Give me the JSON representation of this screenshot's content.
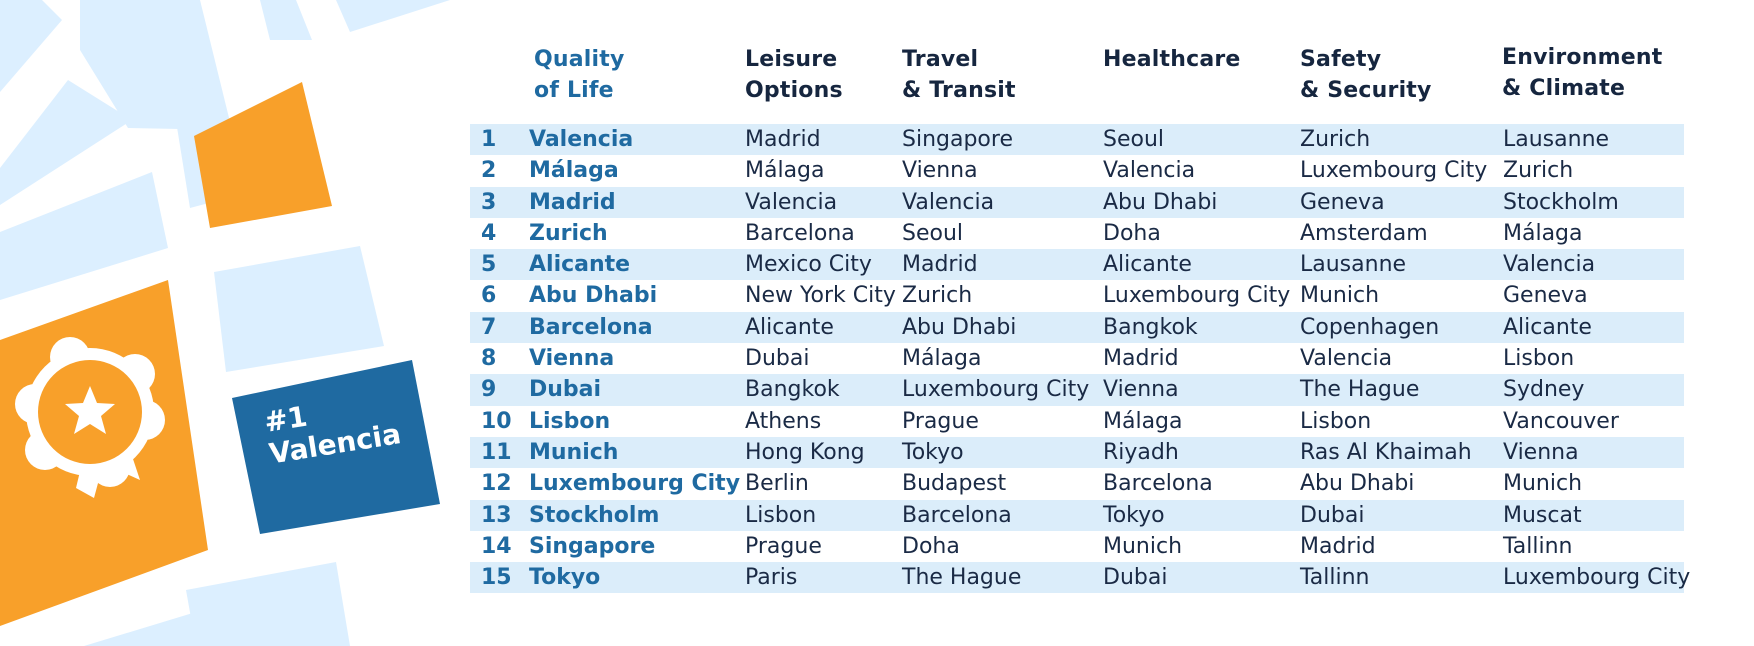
{
  "badge": {
    "line1": "#1",
    "line2": "Valencia"
  },
  "headers": {
    "quality": "Quality\nof Life",
    "leisure": "Leisure\nOptions",
    "travel": "Travel\n& Transit",
    "healthcare": "Healthcare",
    "safety": "Safety\n& Security",
    "environment": "Environment\n& Climate"
  },
  "rows": [
    {
      "rank": "1",
      "quality": "Valencia",
      "leisure": "Madrid",
      "travel": "Singapore",
      "healthcare": "Seoul",
      "safety": "Zurich",
      "environment": "Lausanne"
    },
    {
      "rank": "2",
      "quality": "Málaga",
      "leisure": "Málaga",
      "travel": "Vienna",
      "healthcare": "Valencia",
      "safety": "Luxembourg City",
      "environment": "Zurich"
    },
    {
      "rank": "3",
      "quality": "Madrid",
      "leisure": "Valencia",
      "travel": "Valencia",
      "healthcare": "Abu Dhabi",
      "safety": "Geneva",
      "environment": "Stockholm"
    },
    {
      "rank": "4",
      "quality": "Zurich",
      "leisure": "Barcelona",
      "travel": "Seoul",
      "healthcare": "Doha",
      "safety": "Amsterdam",
      "environment": "Málaga"
    },
    {
      "rank": "5",
      "quality": "Alicante",
      "leisure": "Mexico City",
      "travel": "Madrid",
      "healthcare": "Alicante",
      "safety": "Lausanne",
      "environment": "Valencia"
    },
    {
      "rank": "6",
      "quality": "Abu Dhabi",
      "leisure": "New York City",
      "travel": "Zurich",
      "healthcare": "Luxembourg City",
      "safety": "Munich",
      "environment": "Geneva"
    },
    {
      "rank": "7",
      "quality": "Barcelona",
      "leisure": "Alicante",
      "travel": "Abu Dhabi",
      "healthcare": "Bangkok",
      "safety": "Copenhagen",
      "environment": "Alicante"
    },
    {
      "rank": "8",
      "quality": "Vienna",
      "leisure": "Dubai",
      "travel": "Málaga",
      "healthcare": "Madrid",
      "safety": "Valencia",
      "environment": "Lisbon"
    },
    {
      "rank": "9",
      "quality": "Dubai",
      "leisure": "Bangkok",
      "travel": "Luxembourg City",
      "healthcare": "Vienna",
      "safety": "The Hague",
      "environment": "Sydney"
    },
    {
      "rank": "10",
      "quality": "Lisbon",
      "leisure": "Athens",
      "travel": "Prague",
      "healthcare": "Málaga",
      "safety": "Lisbon",
      "environment": "Vancouver"
    },
    {
      "rank": "11",
      "quality": "Munich",
      "leisure": "Hong Kong",
      "travel": "Tokyo",
      "healthcare": "Riyadh",
      "safety": "Ras Al Khaimah",
      "environment": "Vienna"
    },
    {
      "rank": "12",
      "quality": "Luxembourg City",
      "leisure": "Berlin",
      "travel": "Budapest",
      "healthcare": "Barcelona",
      "safety": "Abu Dhabi",
      "environment": "Munich"
    },
    {
      "rank": "13",
      "quality": "Stockholm",
      "leisure": "Lisbon",
      "travel": "Barcelona",
      "healthcare": "Tokyo",
      "safety": "Dubai",
      "environment": "Muscat"
    },
    {
      "rank": "14",
      "quality": "Singapore",
      "leisure": "Prague",
      "travel": "Doha",
      "healthcare": "Munich",
      "safety": "Madrid",
      "environment": "Tallinn"
    },
    {
      "rank": "15",
      "quality": "Tokyo",
      "leisure": "Paris",
      "travel": "The Hague",
      "healthcare": "Dubai",
      "safety": "Tallinn",
      "environment": "Luxembourg City"
    }
  ],
  "colors": {
    "primary": "#1f6aa1",
    "accent": "#f8a02a",
    "row_stripe": "#dbedfa",
    "map_block": "#dcefff",
    "text": "#1a2a45"
  },
  "icons": {
    "award": "award-badge-icon",
    "star": "star-icon"
  }
}
